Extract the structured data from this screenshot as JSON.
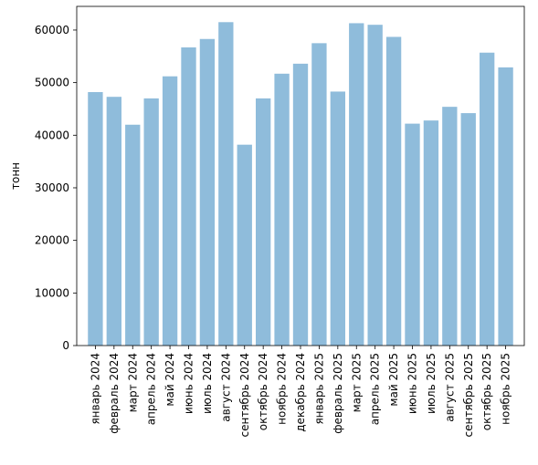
{
  "chart_data": {
    "type": "bar",
    "title": "",
    "xlabel": "",
    "ylabel": "тонн",
    "ylim": [
      0,
      64500
    ],
    "yticks": [
      0,
      10000,
      20000,
      30000,
      40000,
      50000,
      60000
    ],
    "grid": false,
    "legend": "none",
    "bar_color": "#8fbcdb",
    "categories": [
      "январь 2024",
      "февраль 2024",
      "март 2024",
      "апрель 2024",
      "май 2024",
      "июнь 2024",
      "июль 2024",
      "август 2024",
      "сентябрь 2024",
      "октябрь 2024",
      "ноябрь 2024",
      "декабрь 2024",
      "январь 2025",
      "февраль 2025",
      "март 2025",
      "апрель 2025",
      "май 2025",
      "июнь 2025",
      "июль 2025",
      "август 2025",
      "сентябрь 2025",
      "октябрь 2025",
      "ноябрь 2025"
    ],
    "values": [
      48200,
      47300,
      42000,
      47000,
      51200,
      56700,
      58300,
      61500,
      38200,
      47000,
      51700,
      53600,
      57500,
      48300,
      61300,
      61000,
      58700,
      42200,
      42800,
      45400,
      44200,
      55700,
      52900
    ]
  }
}
